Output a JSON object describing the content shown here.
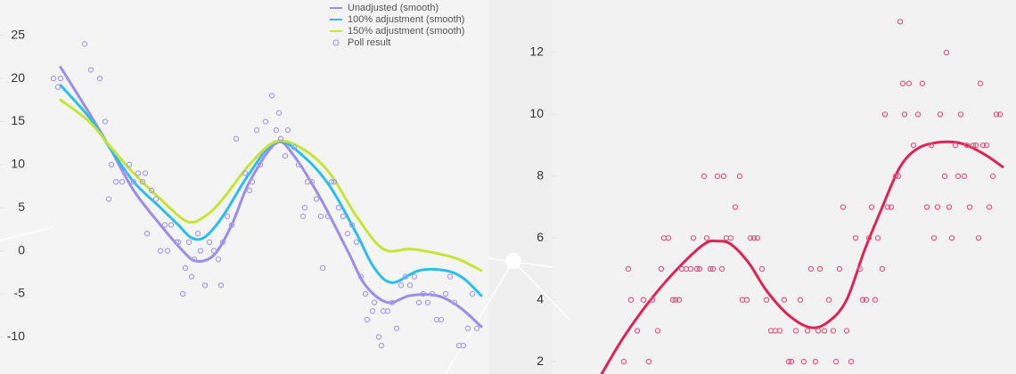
{
  "chart_data": [
    {
      "type": "line",
      "legend": "top",
      "xlim": [
        -6,
        48.8
      ],
      "ylim": [
        -14.3,
        29.1
      ],
      "yticks": [
        25,
        20,
        15,
        10,
        5,
        0,
        -5,
        -10
      ],
      "series": [
        {
          "name": "Unadjusted (smooth)",
          "color": "#9b8de8",
          "x": [
            0.8,
            4,
            6.3,
            9,
            12,
            14.5,
            16,
            18,
            20,
            22,
            25,
            27,
            30,
            33,
            35,
            37.5,
            40,
            43,
            45.5,
            48
          ],
          "values": [
            21.3,
            16,
            12,
            7,
            3,
            0,
            -1.2,
            -0.5,
            3,
            8,
            12.5,
            11,
            6,
            0,
            -4,
            -6,
            -5.2,
            -5.2,
            -6.5,
            -8.8
          ]
        },
        {
          "name": "100% adjustment (smooth)",
          "color": "#29bfea",
          "x": [
            0.8,
            4,
            6.3,
            9,
            12,
            14,
            15.5,
            17,
            19,
            22,
            25,
            28,
            31,
            34,
            36,
            38,
            41,
            44,
            46,
            48
          ],
          "values": [
            19.2,
            15.5,
            12,
            8,
            5,
            3,
            1.5,
            1.6,
            4,
            9,
            12.7,
            11,
            7.5,
            2,
            -2,
            -3.7,
            -2.3,
            -2.3,
            -3.2,
            -5.2
          ]
        },
        {
          "name": "150% adjustment (smooth)",
          "color": "#c6e535",
          "x": [
            0.8,
            4,
            6.3,
            9,
            12,
            15,
            17,
            19,
            22,
            25,
            28,
            31,
            34,
            37,
            40,
            43,
            45.5,
            48
          ],
          "values": [
            17.5,
            15,
            12.2,
            9,
            6,
            3.4,
            4,
            6,
            10,
            12.7,
            11.8,
            9,
            4,
            0.2,
            0.2,
            -0.3,
            -1,
            -2.3
          ]
        },
        {
          "name": "Poll result",
          "color": "#a89cf0",
          "marker": "circle",
          "x": [
            0,
            0.5,
            0.8,
            3.5,
            4.2,
            5.2,
            5.8,
            6.2,
            6.5,
            7,
            7.7,
            8,
            8.5,
            9,
            9.5,
            10,
            10.3,
            10.5,
            11,
            11.5,
            12,
            12.5,
            12.8,
            13.2,
            13.8,
            14,
            14.5,
            14.8,
            15.2,
            15.5,
            15.8,
            16.2,
            16.5,
            17,
            17.5,
            18,
            18.5,
            18.8,
            19,
            19.5,
            20,
            20.5,
            21.5,
            22,
            22.3,
            22.8,
            23.2,
            23.5,
            23.8,
            24.5,
            25,
            25.3,
            25.5,
            26,
            26.3,
            27,
            27.5,
            28,
            28.2,
            28.5,
            29,
            29.5,
            30,
            30.2,
            30.8,
            31.2,
            31.5,
            32,
            32.5,
            33,
            33.5,
            34,
            34.5,
            35,
            35.2,
            35.8,
            36,
            36.5,
            36.8,
            37,
            37.5,
            38,
            38.5,
            39,
            39.5,
            40,
            40.5,
            41,
            41.5,
            42,
            42.5,
            43,
            43.5,
            44,
            44.5,
            45,
            45.5,
            46,
            46.5,
            47,
            47.5
          ],
          "values": [
            20,
            19,
            20,
            24,
            21,
            20,
            15,
            6,
            10,
            8,
            8,
            9,
            10,
            8,
            9,
            8,
            9,
            2,
            7,
            6,
            0,
            3,
            0,
            3,
            1,
            1,
            -5,
            -2,
            1,
            -3,
            -1,
            2,
            0,
            -4,
            1,
            0,
            -1,
            -4,
            1,
            4,
            3,
            13,
            9,
            7,
            8,
            14,
            10,
            11,
            15,
            18,
            14,
            16,
            13,
            11,
            14,
            12,
            10,
            4,
            5,
            8,
            8,
            6,
            4,
            -2,
            4,
            8,
            8,
            5,
            4,
            2,
            3,
            1,
            -3,
            -5,
            -8,
            -7,
            -6,
            -10,
            -11,
            -7,
            -7,
            -6,
            -9,
            -4,
            -3,
            -4,
            -3,
            -6,
            -5,
            -6,
            -5,
            -8,
            -8,
            -5,
            -3,
            -6,
            -11,
            -11,
            -9,
            -5,
            -9
          ]
        }
      ]
    },
    {
      "type": "line",
      "xlim": [
        0,
        52
      ],
      "ylim": [
        1.6,
        13.7
      ],
      "yticks": [
        12,
        10,
        8,
        6,
        4,
        2
      ],
      "series": [
        {
          "color": "#dd2457",
          "x": [
            5.5,
            8,
            11,
            14,
            17,
            18.5,
            20,
            22,
            24,
            26.5,
            29,
            31,
            33,
            35,
            37,
            39,
            41,
            43.5,
            46,
            48.5,
            50.5
          ],
          "values": [
            1.6,
            2.8,
            4,
            5,
            5.8,
            5.9,
            5.8,
            5.2,
            4.3,
            3.5,
            3.1,
            3.3,
            4,
            5.6,
            7,
            8.3,
            8.9,
            9.1,
            9.05,
            8.7,
            8.3
          ]
        },
        {
          "color": "#e5577e",
          "marker": "circle",
          "x": [
            8,
            8.5,
            8.8,
            9.5,
            10.2,
            10.8,
            11.2,
            11.8,
            12.2,
            12.5,
            13,
            13.5,
            13.8,
            14.2,
            14.5,
            15,
            15.5,
            15.8,
            16.2,
            16.5,
            17,
            17.3,
            17.7,
            18,
            18.5,
            19,
            19.2,
            19.5,
            20,
            20.5,
            21,
            21.3,
            21.8,
            22.2,
            22.6,
            23,
            23.5,
            24,
            24.5,
            25,
            25.5,
            26,
            26.5,
            26.8,
            27.3,
            27.8,
            28.2,
            28.6,
            29,
            29.5,
            29.8,
            30,
            30.5,
            31,
            31.5,
            31.8,
            32.2,
            32.6,
            33,
            33.5,
            34,
            34.5,
            34.8,
            35.2,
            35.5,
            35.8,
            36.2,
            36.5,
            37,
            37.3,
            37.6,
            38,
            38.5,
            38.8,
            39,
            39.3,
            39.5,
            40,
            40.5,
            41,
            41.5,
            42,
            42.5,
            42.8,
            43.2,
            43.5,
            44,
            44.2,
            44.5,
            44.8,
            45.2,
            45.5,
            45.8,
            46.2,
            46.5,
            46.8,
            47.2,
            47.5,
            47.8,
            48,
            48.3,
            48.7,
            49,
            49.4,
            49.8,
            50.2
          ],
          "values": [
            2,
            5,
            4,
            3,
            4,
            2,
            4,
            3,
            5,
            6,
            6,
            4,
            4,
            4,
            5,
            5,
            5,
            6,
            5,
            5,
            8,
            6,
            5,
            5,
            8,
            5,
            8,
            6,
            6,
            7,
            8,
            4,
            4,
            6,
            6,
            6,
            5,
            4,
            3,
            3,
            3,
            4,
            2,
            2,
            3,
            4,
            2,
            3,
            5,
            2,
            3,
            5,
            3,
            4,
            3,
            2,
            5,
            7,
            3,
            2,
            6,
            5,
            4,
            4,
            6,
            7,
            4,
            6,
            5,
            10,
            7,
            7,
            8,
            8,
            13,
            11,
            10,
            11,
            9,
            10,
            11,
            7,
            9,
            6,
            7,
            10,
            8,
            12,
            7,
            6,
            9,
            8,
            10,
            8,
            9,
            7,
            9,
            9,
            6,
            11,
            9,
            9,
            7,
            8,
            10,
            10
          ]
        }
      ]
    }
  ]
}
